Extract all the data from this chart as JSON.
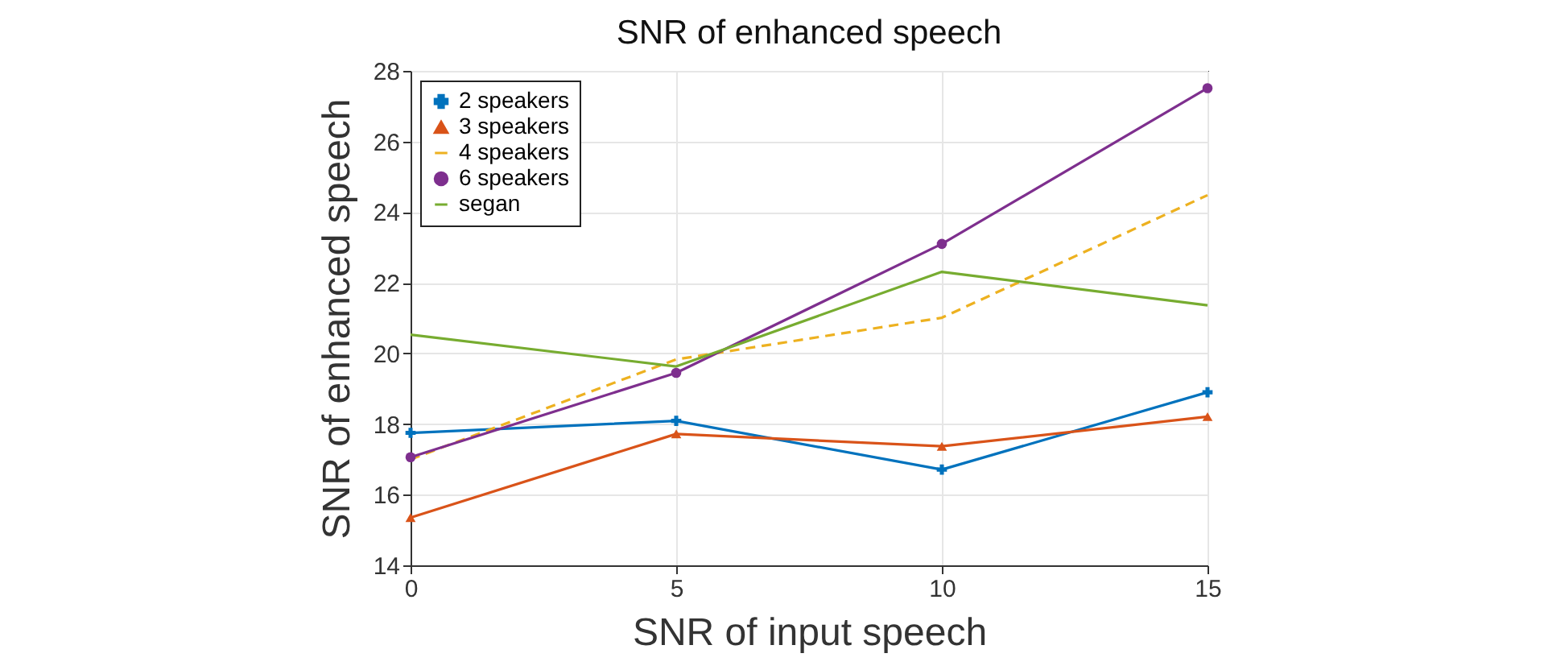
{
  "chart_data": {
    "type": "line",
    "title": "SNR of enhanced speech",
    "xlabel": "SNR of input speech",
    "ylabel": "SNR of enhanced speech",
    "x": [
      0,
      5,
      10,
      15
    ],
    "xlim": [
      0,
      15
    ],
    "xticks": [
      0,
      5,
      10,
      15
    ],
    "ylim": [
      14,
      28
    ],
    "yticks": [
      14,
      16,
      18,
      20,
      22,
      24,
      26,
      28
    ],
    "grid": true,
    "legend": "top left",
    "series": [
      {
        "name": "2 speakers",
        "color": "#0072bd",
        "marker": "cross",
        "line_style": "solid",
        "values": [
          17.75,
          18.09,
          16.71,
          18.9
        ]
      },
      {
        "name": "3 speakers",
        "color": "#d95319",
        "marker": "triangle",
        "line_style": "solid",
        "values": [
          15.35,
          17.72,
          17.37,
          18.21
        ]
      },
      {
        "name": "4 speakers",
        "color": "#edb120",
        "marker": "none",
        "line_style": "dashed",
        "values": [
          17.0,
          19.83,
          21.01,
          24.48
        ]
      },
      {
        "name": "6 speakers",
        "color": "#7e2f8e",
        "marker": "circle",
        "line_style": "solid",
        "values": [
          17.06,
          19.45,
          23.1,
          27.51
        ]
      },
      {
        "name": "segan",
        "color": "#77ac30",
        "marker": "none",
        "line_style": "solid",
        "values": [
          20.53,
          19.63,
          22.31,
          21.36
        ]
      }
    ]
  }
}
